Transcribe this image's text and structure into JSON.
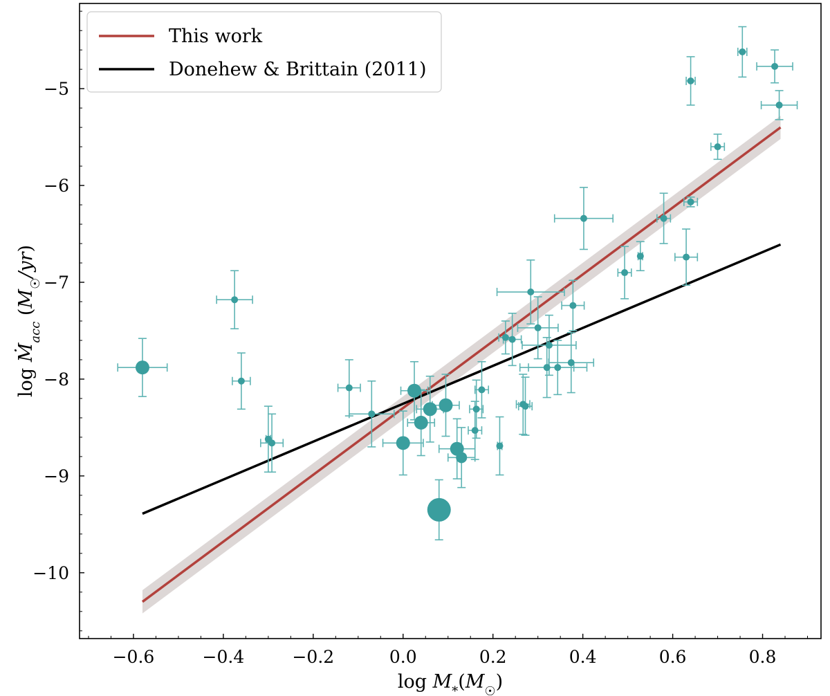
{
  "chart_data": {
    "type": "scatter",
    "title": "",
    "xlabel": "log M*(M☉)",
    "ylabel": "log Ṁacc (M☉/yr)",
    "xlim": [
      -0.72,
      0.93
    ],
    "ylim": [
      -10.68,
      -4.12
    ],
    "xticks": [
      -0.6,
      -0.4,
      -0.2,
      0.0,
      0.2,
      0.4,
      0.6,
      0.8
    ],
    "xtick_labels": [
      "−0.6",
      "−0.4",
      "−0.2",
      "0.0",
      "0.2",
      "0.4",
      "0.6",
      "0.8"
    ],
    "yticks": [
      -10,
      -9,
      -8,
      -7,
      -6,
      -5
    ],
    "ytick_labels": [
      "−10",
      "−9",
      "−8",
      "−7",
      "−6",
      "−5"
    ],
    "grid": false,
    "legend_position": "top-left",
    "colors": {
      "points": "#3a9e9e",
      "errorbars": "#5fb4b4",
      "fit_this_work": "#b2413c",
      "fit_band": "#d9d3d1",
      "fit_donehew": "#000000"
    },
    "lines": [
      {
        "name": "This work",
        "x": [
          -0.58,
          0.84
        ],
        "y": [
          -10.3,
          -5.4
        ],
        "band": 0.12
      },
      {
        "name": "Donehew & Brittain (2011)",
        "x": [
          -0.58,
          0.84
        ],
        "y": [
          -9.39,
          -6.61
        ]
      }
    ],
    "points": [
      {
        "x": -0.58,
        "y": -7.88,
        "xerr": 0.055,
        "yerr": 0.3,
        "size": "large"
      },
      {
        "x": -0.375,
        "y": -7.18,
        "xerr": 0.04,
        "yerr": 0.3,
        "size": "small"
      },
      {
        "x": -0.36,
        "y": -8.02,
        "xerr": 0.02,
        "yerr": 0.29,
        "size": "small"
      },
      {
        "x": -0.3,
        "y": -8.62,
        "xerr": 0.005,
        "yerr": 0.34,
        "size": "small"
      },
      {
        "x": -0.292,
        "y": -8.66,
        "xerr": 0.025,
        "yerr": 0.3,
        "size": "small"
      },
      {
        "x": -0.12,
        "y": -8.09,
        "xerr": 0.025,
        "yerr": 0.29,
        "size": "small"
      },
      {
        "x": -0.07,
        "y": -8.36,
        "xerr": 0.05,
        "yerr": 0.34,
        "size": "small"
      },
      {
        "x": 0.0,
        "y": -8.66,
        "xerr": 0.045,
        "yerr": 0.33,
        "size": "large"
      },
      {
        "x": 0.025,
        "y": -8.12,
        "xerr": 0.03,
        "yerr": 0.3,
        "size": "large"
      },
      {
        "x": 0.04,
        "y": -8.45,
        "xerr": 0.03,
        "yerr": 0.34,
        "size": "large"
      },
      {
        "x": 0.06,
        "y": -8.31,
        "xerr": 0.03,
        "yerr": 0.34,
        "size": "large"
      },
      {
        "x": 0.08,
        "y": -9.35,
        "xerr": 0.0,
        "yerr": 0.31,
        "size": "xlarge"
      },
      {
        "x": 0.095,
        "y": -8.27,
        "xerr": 0.03,
        "yerr": 0.32,
        "size": "large"
      },
      {
        "x": 0.12,
        "y": -8.72,
        "xerr": 0.04,
        "yerr": 0.31,
        "size": "large"
      },
      {
        "x": 0.13,
        "y": -8.81,
        "xerr": 0.03,
        "yerr": 0.31,
        "size": "medium"
      },
      {
        "x": 0.16,
        "y": -8.53,
        "xerr": 0.015,
        "yerr": 0.3,
        "size": "small"
      },
      {
        "x": 0.163,
        "y": -8.31,
        "xerr": 0.015,
        "yerr": 0.3,
        "size": "small"
      },
      {
        "x": 0.175,
        "y": -8.11,
        "xerr": 0.015,
        "yerr": 0.29,
        "size": "small"
      },
      {
        "x": 0.215,
        "y": -8.69,
        "xerr": 0.005,
        "yerr": 0.3,
        "size": "small"
      },
      {
        "x": 0.228,
        "y": -7.57,
        "xerr": 0.015,
        "yerr": 0.17,
        "size": "small"
      },
      {
        "x": 0.243,
        "y": -7.59,
        "xerr": 0.02,
        "yerr": 0.27,
        "size": "small"
      },
      {
        "x": 0.267,
        "y": -8.26,
        "xerr": 0.015,
        "yerr": 0.31,
        "size": "small"
      },
      {
        "x": 0.272,
        "y": -8.28,
        "xerr": 0.015,
        "yerr": 0.3,
        "size": "small"
      },
      {
        "x": 0.284,
        "y": -7.1,
        "xerr": 0.075,
        "yerr": 0.33,
        "size": "small"
      },
      {
        "x": 0.3,
        "y": -7.47,
        "xerr": 0.045,
        "yerr": 0.32,
        "size": "small"
      },
      {
        "x": 0.32,
        "y": -7.88,
        "xerr": 0.06,
        "yerr": 0.31,
        "size": "small"
      },
      {
        "x": 0.325,
        "y": -7.65,
        "xerr": 0.06,
        "yerr": 0.31,
        "size": "small"
      },
      {
        "x": 0.344,
        "y": -7.88,
        "xerr": 0.065,
        "yerr": 0.28,
        "size": "small"
      },
      {
        "x": 0.374,
        "y": -7.83,
        "xerr": 0.05,
        "yerr": 0.31,
        "size": "small"
      },
      {
        "x": 0.378,
        "y": -7.24,
        "xerr": 0.025,
        "yerr": 0.26,
        "size": "small"
      },
      {
        "x": 0.402,
        "y": -6.34,
        "xerr": 0.065,
        "yerr": 0.32,
        "size": "small"
      },
      {
        "x": 0.493,
        "y": -6.9,
        "xerr": 0.015,
        "yerr": 0.27,
        "size": "small"
      },
      {
        "x": 0.528,
        "y": -6.73,
        "xerr": 0.005,
        "yerr": 0.15,
        "size": "small"
      },
      {
        "x": 0.58,
        "y": -6.34,
        "xerr": 0.015,
        "yerr": 0.26,
        "size": "small"
      },
      {
        "x": 0.63,
        "y": -6.74,
        "xerr": 0.025,
        "yerr": 0.29,
        "size": "small"
      },
      {
        "x": 0.64,
        "y": -6.17,
        "xerr": 0.015,
        "yerr": 0.05,
        "size": "small"
      },
      {
        "x": 0.64,
        "y": -4.92,
        "xerr": 0.01,
        "yerr": 0.25,
        "size": "small"
      },
      {
        "x": 0.7,
        "y": -5.6,
        "xerr": 0.015,
        "yerr": 0.13,
        "size": "small"
      },
      {
        "x": 0.755,
        "y": -4.62,
        "xerr": 0.01,
        "yerr": 0.26,
        "size": "small"
      },
      {
        "x": 0.827,
        "y": -4.77,
        "xerr": 0.04,
        "yerr": 0.17,
        "size": "small"
      },
      {
        "x": 0.837,
        "y": -5.17,
        "xerr": 0.04,
        "yerr": 0.15,
        "size": "small"
      }
    ]
  },
  "legend": {
    "items": [
      {
        "label": "This work",
        "color": "#b2413c"
      },
      {
        "label": "Donehew & Brittain (2011)",
        "color": "#000000"
      }
    ]
  }
}
